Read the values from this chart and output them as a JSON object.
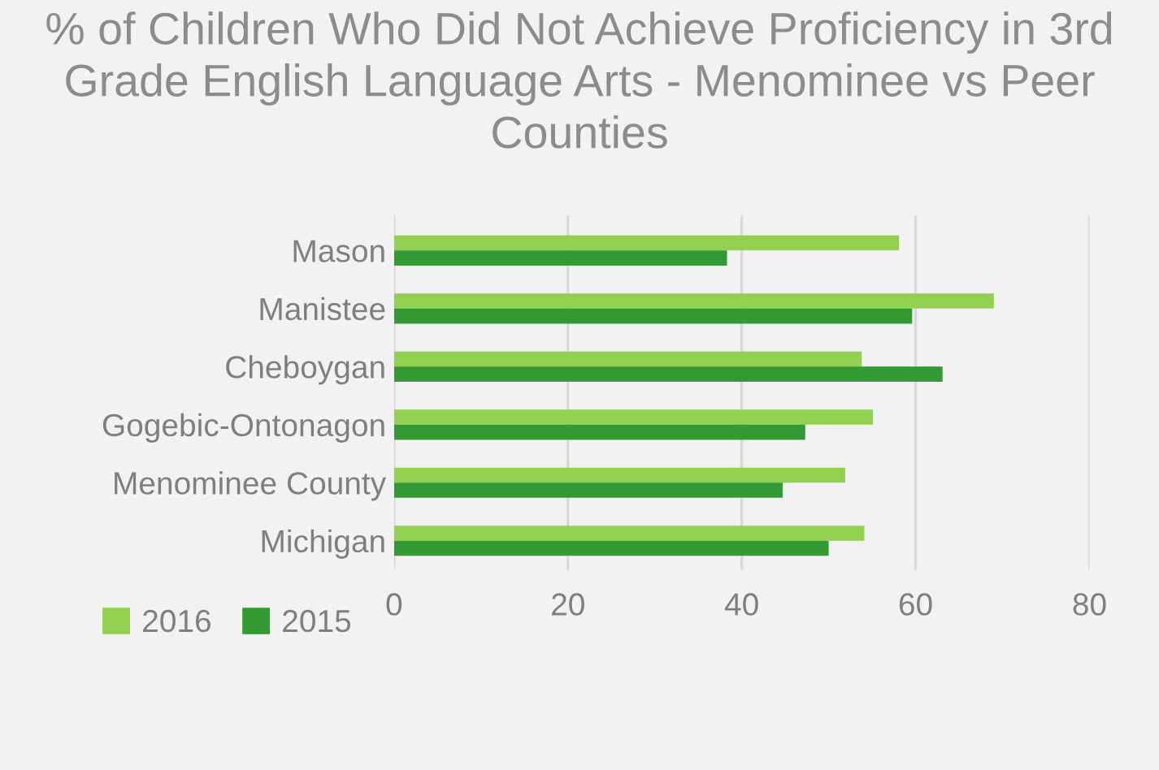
{
  "chart_data": {
    "type": "bar",
    "orientation": "horizontal",
    "title": "% of Children Who Did Not Achieve Proficiency in 3rd Grade English Language Arts - Menominee vs Peer Counties",
    "categories": [
      "Mason",
      "Manistee",
      "Cheboygan",
      "Gogebic-Ontonagon",
      "Menominee County",
      "Michigan"
    ],
    "series": [
      {
        "name": "2016",
        "color": "#92d050",
        "values": [
          58.1,
          69.0,
          53.8,
          55.1,
          51.9,
          54.1
        ]
      },
      {
        "name": "2015",
        "color": "#339933",
        "values": [
          38.3,
          59.6,
          63.1,
          47.3,
          44.7,
          50.0
        ]
      }
    ],
    "xlim": [
      0,
      80
    ],
    "xticks": [
      0,
      20,
      40,
      60,
      80
    ],
    "grid": "x",
    "legend": "bottom left"
  }
}
